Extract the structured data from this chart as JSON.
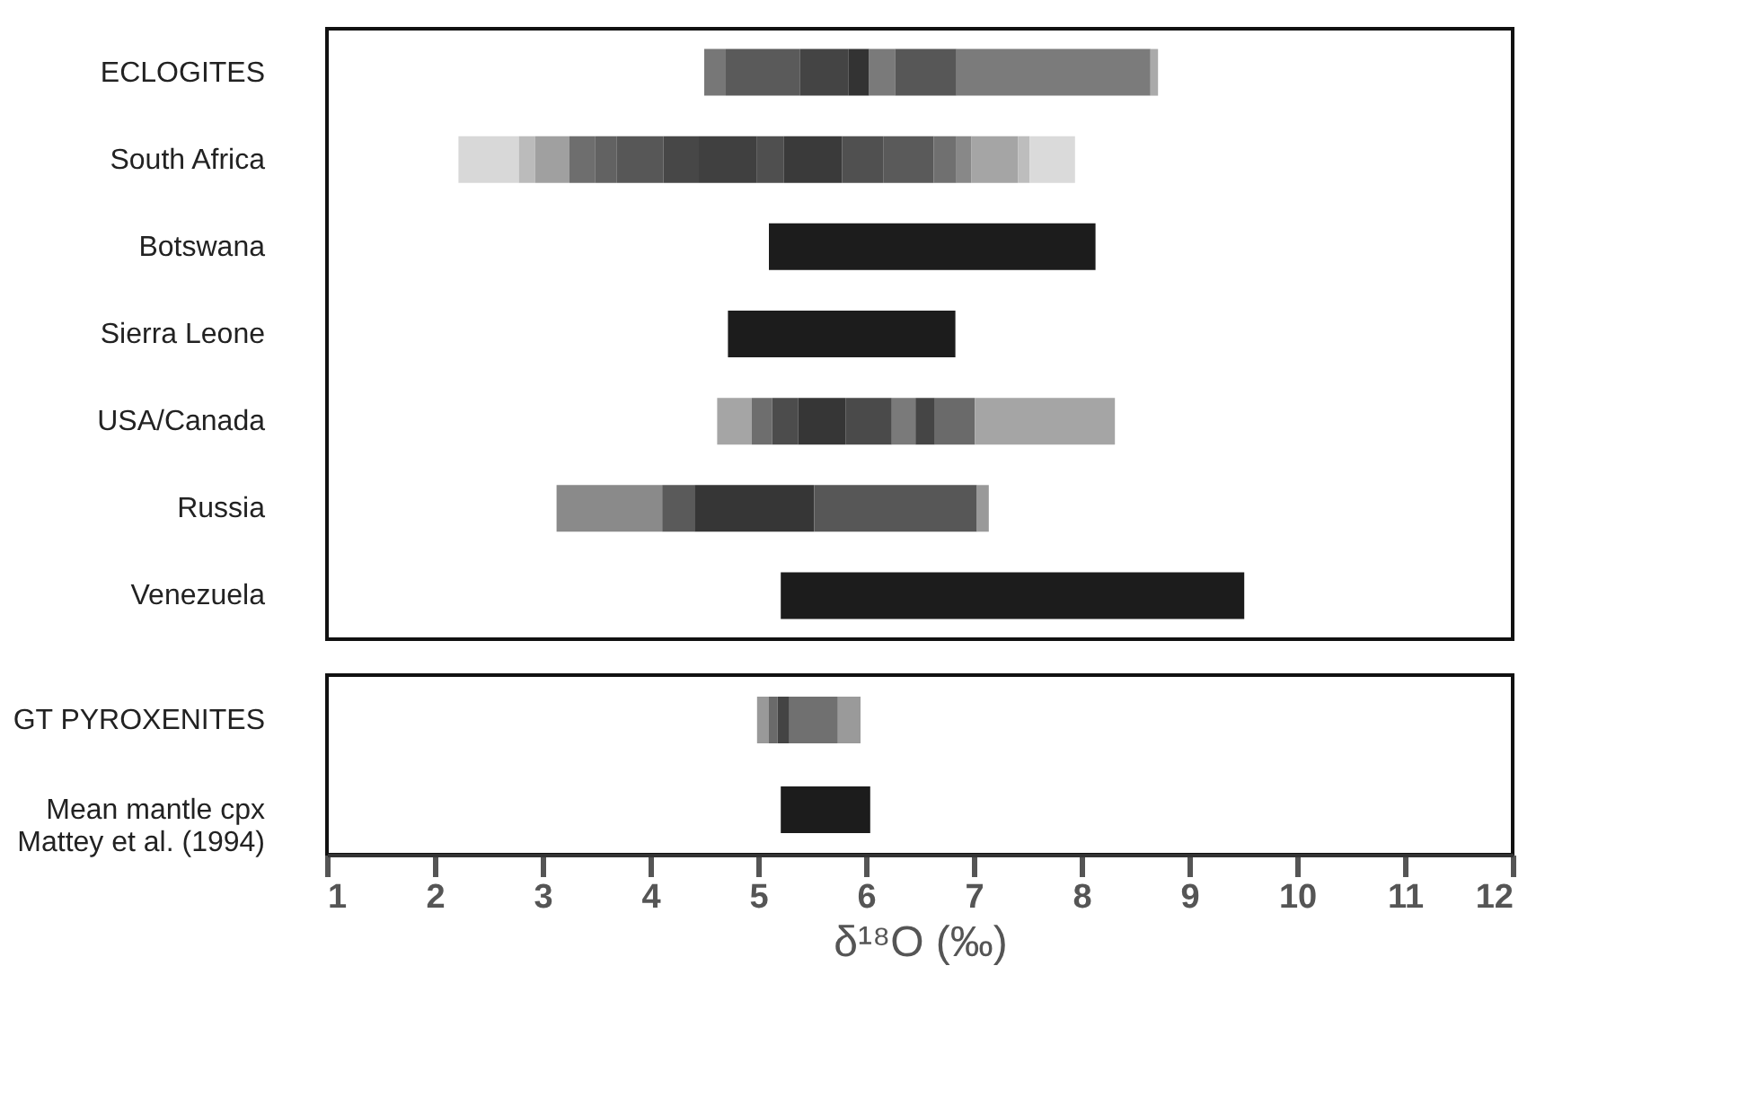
{
  "chart_data": [
    {
      "type": "bar",
      "orientation": "horizontal",
      "grid": false,
      "tick_labels": "y",
      "xlim": [
        1,
        12
      ],
      "xticks": [
        1,
        2,
        3,
        4,
        5,
        6,
        7,
        8,
        9,
        10,
        11,
        12
      ],
      "categories": [
        "ECLOGITES",
        "South Africa",
        "Botswana",
        "Sierra Leone",
        "USA/Canada",
        "Russia",
        "Venezuela"
      ],
      "series": [
        {
          "base": [
            4.5,
            2.22,
            5.1,
            4.72,
            4.62,
            3.13,
            5.21
          ],
          "values": [
            0.2,
            0.56,
            3.03,
            2.11,
            0.32,
            0.98,
            4.3
          ],
          "colors": [
            "#777777",
            "#d8d8d8",
            "#1c1c1c",
            "#1c1c1c",
            "#a5a5a5",
            "#8a8a8a",
            "#1c1c1c"
          ]
        },
        {
          "base": [
            4.7,
            2.78,
            null,
            null,
            4.94,
            4.11,
            null
          ],
          "values": [
            0.69,
            0.15,
            null,
            null,
            0.19,
            0.3,
            null
          ],
          "colors": [
            "#5a5a5a",
            "#bbbbbb",
            null,
            null,
            "#6e6e6e",
            "#5a5a5a",
            null
          ]
        },
        {
          "base": [
            5.39,
            2.93,
            null,
            null,
            5.13,
            4.41,
            null
          ],
          "values": [
            0.45,
            0.32,
            null,
            null,
            0.24,
            1.11,
            null
          ],
          "colors": [
            "#444444",
            "#a0a0a0",
            null,
            null,
            "#4c4c4c",
            "#363636",
            null
          ]
        },
        {
          "base": [
            5.84,
            3.25,
            null,
            null,
            5.37,
            5.52,
            null
          ],
          "values": [
            0.19,
            0.24,
            null,
            null,
            0.44,
            1.51,
            null
          ],
          "colors": [
            "#333333",
            "#6e6e6e",
            null,
            null,
            "#363636",
            "#575757",
            null
          ]
        },
        {
          "base": [
            6.03,
            3.49,
            null,
            null,
            5.81,
            7.03,
            null
          ],
          "values": [
            0.24,
            0.2,
            null,
            null,
            0.43,
            0.11,
            null
          ],
          "colors": [
            "#7a7a7a",
            "#626262",
            null,
            null,
            "#4a4a4a",
            "#999999",
            null
          ]
        },
        {
          "base": [
            6.27,
            3.69,
            null,
            null,
            6.24,
            null,
            null
          ],
          "values": [
            0.57,
            0.43,
            null,
            null,
            0.22,
            null,
            null
          ],
          "colors": [
            "#575757",
            "#575757",
            null,
            null,
            "#7a7a7a",
            null,
            null
          ]
        },
        {
          "base": [
            6.84,
            4.12,
            null,
            null,
            6.46,
            null,
            null
          ],
          "values": [
            1.8,
            0.33,
            null,
            null,
            0.18,
            null,
            null
          ],
          "colors": [
            "#7b7b7b",
            "#474747",
            null,
            null,
            "#454545",
            null,
            null
          ]
        },
        {
          "base": [
            8.64,
            4.45,
            null,
            null,
            6.64,
            null,
            null
          ],
          "values": [
            0.07,
            0.54,
            null,
            null,
            0.37,
            null,
            null
          ],
          "colors": [
            "#aaaaaa",
            "#404040",
            null,
            null,
            "#6a6a6a",
            null,
            null
          ]
        },
        {
          "base": [
            null,
            4.99,
            null,
            null,
            7.01,
            null,
            null
          ],
          "values": [
            null,
            0.25,
            null,
            null,
            1.3,
            null,
            null
          ],
          "colors": [
            null,
            "#4f4f4f",
            null,
            null,
            "#a5a5a5",
            null,
            null
          ]
        },
        {
          "base": [
            null,
            5.24,
            null,
            null,
            null,
            null,
            null
          ],
          "values": [
            null,
            0.54,
            null,
            null,
            null,
            null,
            null
          ],
          "colors": [
            null,
            "#3a3a3a",
            null,
            null,
            null,
            null,
            null
          ]
        },
        {
          "base": [
            null,
            5.78,
            null,
            null,
            null,
            null,
            null
          ],
          "values": [
            null,
            0.38,
            null,
            null,
            null,
            null,
            null
          ],
          "colors": [
            null,
            "#505050",
            null,
            null,
            null,
            null,
            null
          ]
        },
        {
          "base": [
            null,
            6.16,
            null,
            null,
            null,
            null,
            null
          ],
          "values": [
            null,
            0.47,
            null,
            null,
            null,
            null,
            null
          ],
          "colors": [
            null,
            "#5a5a5a",
            null,
            null,
            null,
            null,
            null
          ]
        },
        {
          "base": [
            null,
            6.63,
            null,
            null,
            null,
            null,
            null
          ],
          "values": [
            null,
            0.21,
            null,
            null,
            null,
            null,
            null
          ],
          "colors": [
            null,
            "#707070",
            null,
            null,
            null,
            null,
            null
          ]
        },
        {
          "base": [
            null,
            6.84,
            null,
            null,
            null,
            null,
            null
          ],
          "values": [
            null,
            0.14,
            null,
            null,
            null,
            null,
            null
          ],
          "colors": [
            null,
            "#888888",
            null,
            null,
            null,
            null,
            null
          ]
        },
        {
          "base": [
            null,
            6.98,
            null,
            null,
            null,
            null,
            null
          ],
          "values": [
            null,
            0.43,
            null,
            null,
            null,
            null,
            null
          ],
          "colors": [
            null,
            "#a5a5a5",
            null,
            null,
            null,
            null,
            null
          ]
        },
        {
          "base": [
            null,
            7.41,
            null,
            null,
            null,
            null,
            null
          ],
          "values": [
            null,
            0.11,
            null,
            null,
            null,
            null,
            null
          ],
          "colors": [
            null,
            "#bdbdbd",
            null,
            null,
            null,
            null,
            null
          ]
        },
        {
          "base": [
            null,
            7.52,
            null,
            null,
            null,
            null,
            null
          ],
          "values": [
            null,
            0.42,
            null,
            null,
            null,
            null,
            null
          ],
          "colors": [
            null,
            "#dadada",
            null,
            null,
            null,
            null,
            null
          ]
        }
      ]
    },
    {
      "type": "bar",
      "orientation": "horizontal",
      "grid": false,
      "xlim": [
        1,
        12
      ],
      "xticks": [
        1,
        2,
        3,
        4,
        5,
        6,
        7,
        8,
        9,
        10,
        11,
        12
      ],
      "xlabel": "δ¹⁸O (‰)",
      "categories": [
        "GT PYROXENITES",
        "Mean mantle cpx\nMattey et al. (1994)"
      ],
      "series": [
        {
          "base": [
            4.99,
            5.21
          ],
          "values": [
            0.11,
            0.83
          ],
          "colors": [
            "#999999",
            "#1c1c1c"
          ]
        },
        {
          "base": [
            5.1,
            null
          ],
          "values": [
            0.08,
            null
          ],
          "colors": [
            "#6a6a6a",
            null
          ]
        },
        {
          "base": [
            5.18,
            null
          ],
          "values": [
            0.11,
            null
          ],
          "colors": [
            "#444444",
            null
          ]
        },
        {
          "base": [
            5.29,
            null
          ],
          "values": [
            0.45,
            null
          ],
          "colors": [
            "#707070",
            null
          ]
        },
        {
          "base": [
            5.74,
            null
          ],
          "values": [
            0.21,
            null
          ],
          "colors": [
            "#9a9a9a",
            null
          ]
        }
      ]
    }
  ]
}
